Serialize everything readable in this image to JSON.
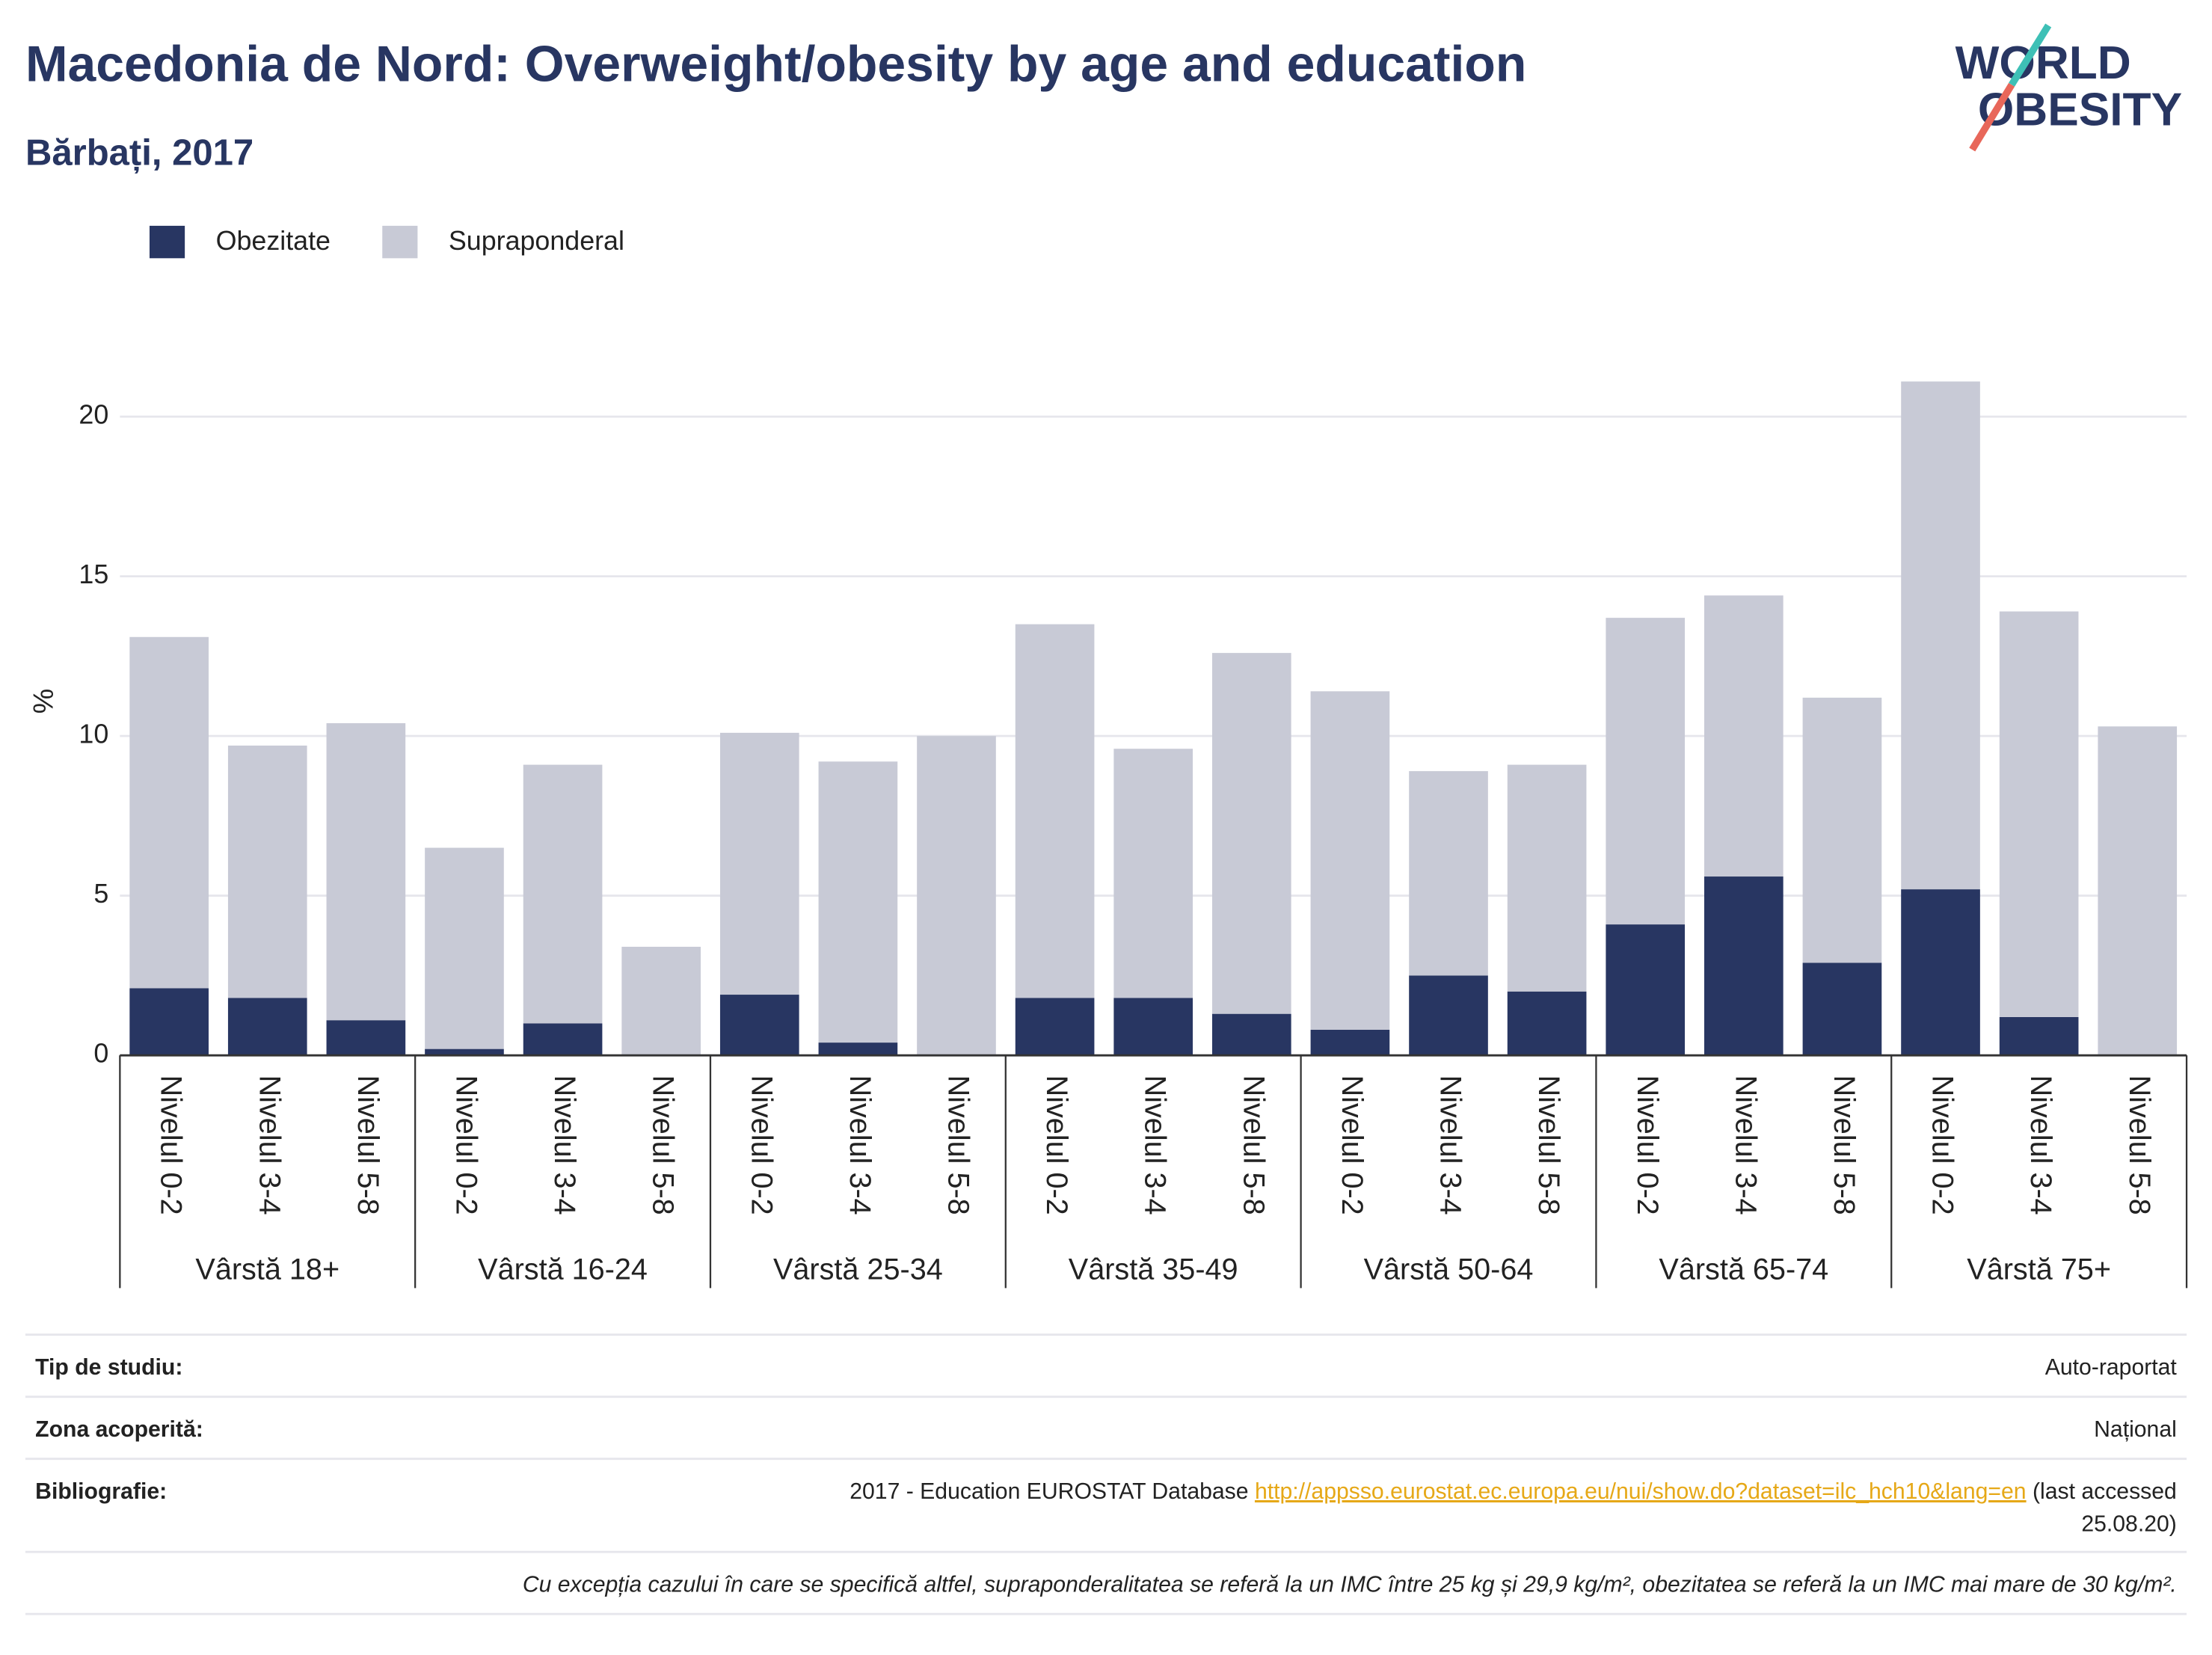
{
  "chart_data": {
    "type": "bar",
    "stacked": true,
    "title": "Macedonia de Nord: Overweight/obesity by age and education",
    "subtitle": "Bărbați, 2017",
    "ylabel": "%",
    "logo": [
      "WORLD",
      "OBESITY"
    ],
    "groups": [
      "Vârstă 18+",
      "Vârstă 16-24",
      "Vârstă 25-34",
      "Vârstă 35-49",
      "Vârstă 50-64",
      "Vârstă 65-74",
      "Vârstă 75+"
    ],
    "categories": [
      "Nivelul 0-2",
      "Nivelul 3-4",
      "Nivelul 5-8",
      "Nivelul 0-2",
      "Nivelul 3-4",
      "Nivelul 5-8",
      "Nivelul 0-2",
      "Nivelul 3-4",
      "Nivelul 5-8",
      "Nivelul 0-2",
      "Nivelul 3-4",
      "Nivelul 5-8",
      "Nivelul 0-2",
      "Nivelul 3-4",
      "Nivelul 5-8",
      "Nivelul 0-2",
      "Nivelul 3-4",
      "Nivelul 5-8",
      "Nivelul 0-2",
      "Nivelul 3-4",
      "Nivelul 5-8"
    ],
    "series": [
      {
        "name": "Obezitate",
        "color": "#283662",
        "values": [
          2.1,
          1.8,
          1.1,
          0.2,
          1.0,
          0,
          1.9,
          0.4,
          0,
          1.8,
          1.8,
          1.3,
          0.8,
          2.5,
          2.0,
          4.1,
          5.6,
          2.9,
          5.2,
          1.2,
          0
        ]
      },
      {
        "name": "Supraponderal",
        "color": "#c8cad6",
        "values": [
          11.0,
          7.9,
          9.3,
          6.3,
          8.1,
          3.4,
          8.2,
          8.8,
          10.0,
          11.7,
          7.8,
          11.3,
          10.6,
          6.4,
          7.1,
          9.6,
          8.8,
          8.3,
          15.9,
          12.7,
          10.3
        ]
      }
    ],
    "ylim": [
      0,
      22
    ],
    "yticks": [
      0,
      5,
      10,
      15,
      20
    ],
    "grid": true
  },
  "details": {
    "rows": [
      {
        "label": "Tip de studiu:",
        "value": "Auto-raportat"
      },
      {
        "label": "Zona acoperită:",
        "value": "Național"
      }
    ],
    "bibliography": {
      "label": "Bibliografie:",
      "text": "2017 - Education EUROSTAT Database",
      "link": "http://appsso.eurostat.ec.europa.eu/nui/show.do?dataset=ilc_hch10&lang=en",
      "suffix": [
        "(last accessed",
        "25.08.20)"
      ]
    },
    "note": "Cu excepția cazului în care se specifică altfel, supraponderalitatea se referă la un IMC între 25 kg și 29,9 kg/m², obezitatea se referă la un IMC mai mare de 30 kg/m²."
  }
}
